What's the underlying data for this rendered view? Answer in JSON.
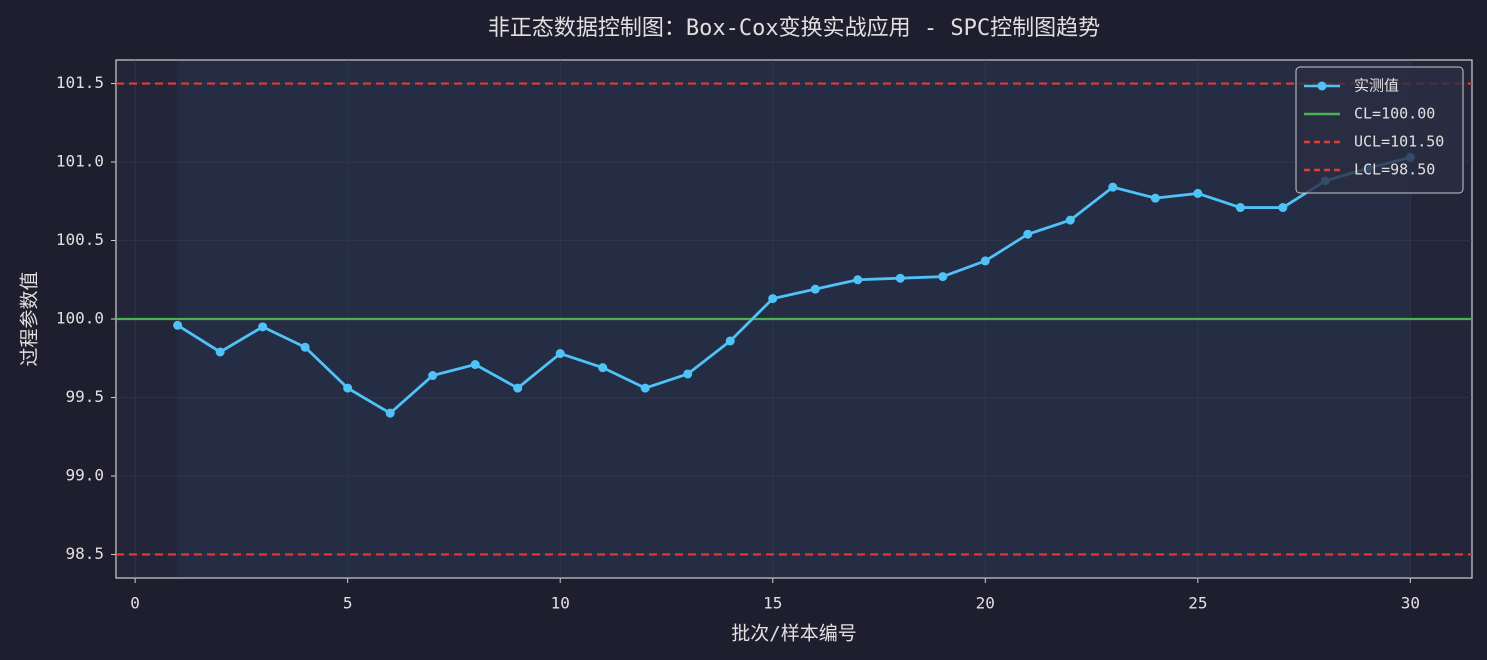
{
  "chart_data": {
    "type": "line",
    "title": "非正态数据控制图：Box-Cox变换实战应用 - SPC控制图趋势",
    "x_label": "批次/样本编号",
    "y_label": "过程参数值",
    "x": [
      1,
      2,
      3,
      4,
      5,
      6,
      7,
      8,
      9,
      10,
      11,
      12,
      13,
      14,
      15,
      16,
      17,
      18,
      19,
      20,
      21,
      22,
      23,
      24,
      25,
      26,
      27,
      28,
      29,
      30
    ],
    "series": [
      {
        "name": "实测值",
        "color": "#4fc3f7",
        "values": [
          99.96,
          99.79,
          99.95,
          99.82,
          99.56,
          99.4,
          99.64,
          99.71,
          99.56,
          99.78,
          99.69,
          99.56,
          99.65,
          99.86,
          100.13,
          100.19,
          100.25,
          100.26,
          100.27,
          100.37,
          100.54,
          100.63,
          100.84,
          100.77,
          100.8,
          100.71,
          100.71,
          100.88,
          100.96,
          101.03
        ]
      }
    ],
    "control_lines": [
      {
        "name": "CL=100.00",
        "value": 100.0,
        "color": "#4caf50",
        "dashed": false
      },
      {
        "name": "UCL=101.50",
        "value": 101.5,
        "color": "#e53935",
        "dashed": true
      },
      {
        "name": "LCL=98.50",
        "value": 98.5,
        "color": "#e53935",
        "dashed": true
      }
    ],
    "xlim": [
      -0.45,
      31.45
    ],
    "ylim": [
      98.35,
      101.65
    ],
    "xticks": [
      0,
      5,
      10,
      15,
      20,
      25,
      30
    ],
    "yticks": [
      98.5,
      {
        "value": 99,
        "label": "99.0"
      },
      99.5,
      {
        "value": 100,
        "label": "100.0"
      },
      100.5,
      {
        "value": 101,
        "label": "101.0"
      },
      101.5
    ],
    "grid": true,
    "legend": "upper right"
  }
}
